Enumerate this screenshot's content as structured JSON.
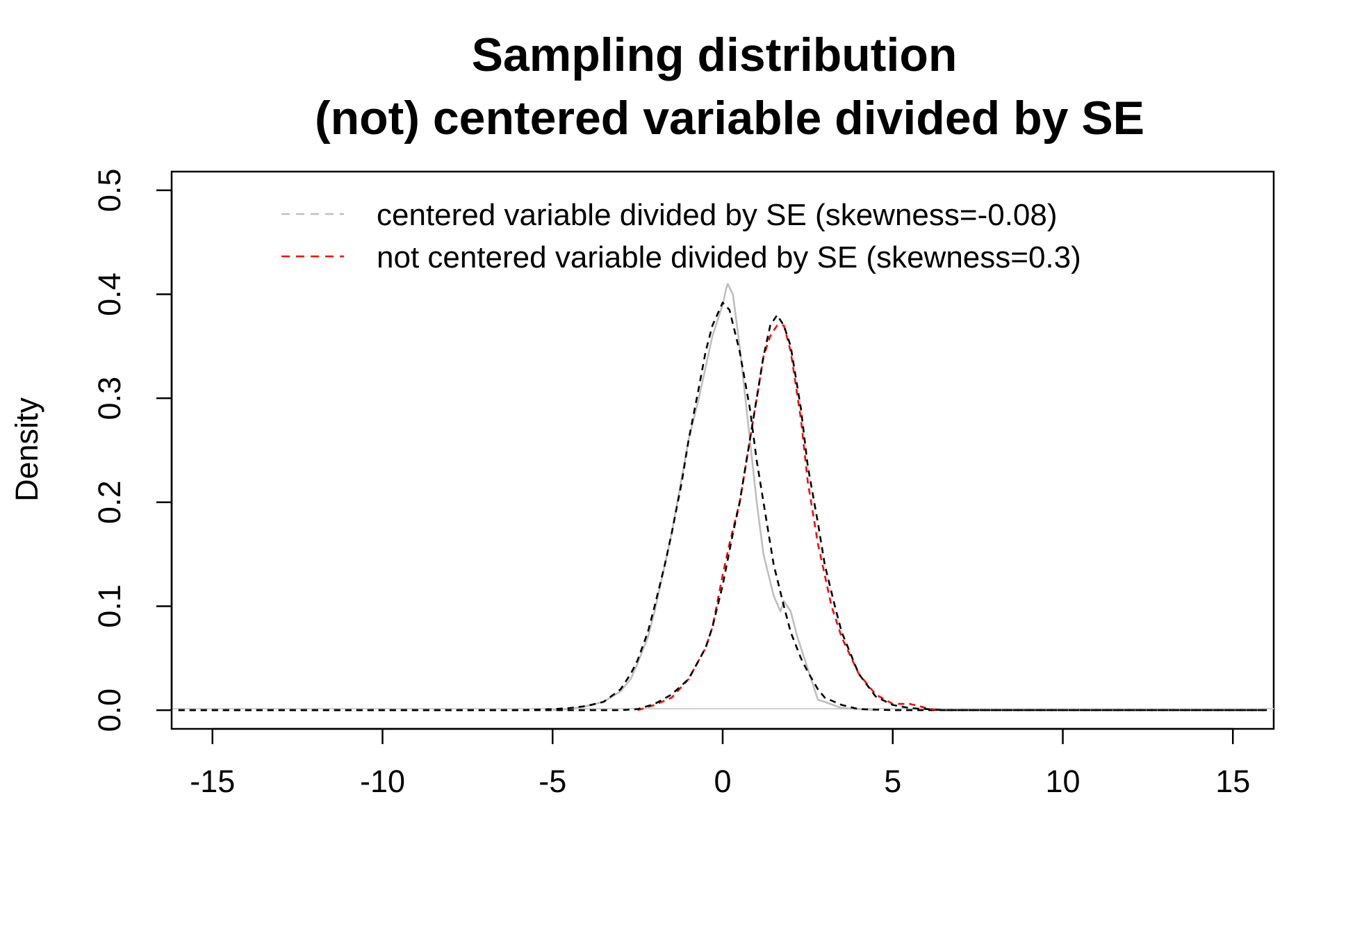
{
  "chart_data": {
    "type": "line",
    "title": "Sampling distribution",
    "subtitle": "(not) centered variable divided by SE",
    "xlabel": "",
    "ylabel": "Density",
    "xlim": [
      -16.2,
      16.2
    ],
    "ylim": [
      -0.018,
      0.518
    ],
    "x_ticks": [
      -15,
      -10,
      -5,
      0,
      5,
      10,
      15
    ],
    "y_ticks": [
      0.0,
      0.1,
      0.2,
      0.3,
      0.4,
      0.5
    ],
    "x_tick_labels": [
      "-15",
      "-10",
      "-5",
      "0",
      "5",
      "10",
      "15"
    ],
    "y_tick_labels": [
      "0.0",
      "0.1",
      "0.2",
      "0.3",
      "0.4",
      "0.5"
    ],
    "grid": false,
    "legend_position": "top-center",
    "legend": [
      {
        "label": "centered variable divided by SE (skewness=-0.08)",
        "color": "#bebebe",
        "style": "dashed"
      },
      {
        "label": "not centered variable divided by SE (skewness=0.3)",
        "color": "#ff0000",
        "style": "dashed"
      }
    ],
    "series": [
      {
        "key": "centered_density",
        "color": "#bebebe",
        "style": "solid",
        "x": [
          -5,
          -4.5,
          -4,
          -3.5,
          -3,
          -2.7,
          -2.5,
          -2.2,
          -2,
          -1.5,
          -1,
          -0.7,
          -0.5,
          -0.3,
          0,
          0.1,
          0.15,
          0.3,
          0.5,
          0.7,
          1,
          1.2,
          1.5,
          1.7,
          1.8,
          2,
          2.2,
          2.5,
          2.8,
          3,
          3.5,
          4,
          4.5
        ],
        "y": [
          0,
          0.001,
          0.004,
          0.008,
          0.018,
          0.03,
          0.045,
          0.07,
          0.095,
          0.17,
          0.26,
          0.3,
          0.33,
          0.36,
          0.39,
          0.405,
          0.41,
          0.4,
          0.35,
          0.29,
          0.2,
          0.15,
          0.11,
          0.095,
          0.105,
          0.095,
          0.07,
          0.04,
          0.01,
          0.008,
          0.002,
          0.001,
          0
        ]
      },
      {
        "key": "centered_normal",
        "color": "#000000",
        "style": "dashed",
        "x": [
          -16,
          -6,
          -5,
          -4.5,
          -4,
          -3.5,
          -3,
          -2.7,
          -2.5,
          -2.2,
          -2,
          -1.7,
          -1.5,
          -1.2,
          -1,
          -0.7,
          -0.5,
          -0.3,
          0,
          0.2,
          0.5,
          0.8,
          1,
          1.3,
          1.5,
          1.8,
          2,
          2.3,
          2.5,
          2.8,
          3,
          3.5,
          4,
          5,
          16
        ],
        "y": [
          0,
          0,
          0.001,
          0.002,
          0.004,
          0.008,
          0.02,
          0.035,
          0.048,
          0.075,
          0.1,
          0.14,
          0.17,
          0.22,
          0.26,
          0.31,
          0.345,
          0.37,
          0.392,
          0.385,
          0.345,
          0.29,
          0.24,
          0.18,
          0.14,
          0.1,
          0.075,
          0.05,
          0.037,
          0.02,
          0.012,
          0.005,
          0.001,
          0,
          0
        ]
      },
      {
        "key": "not_centered_density",
        "color": "#ff0000",
        "style": "dashed",
        "x": [
          -2.5,
          -2,
          -1.5,
          -1,
          -0.5,
          -0.3,
          0,
          0.2,
          0.5,
          0.8,
          1,
          1.2,
          1.4,
          1.6,
          1.8,
          2,
          2.3,
          2.5,
          2.8,
          3,
          3.2,
          3.5,
          4,
          4.5,
          5,
          5.5,
          6,
          6.3
        ],
        "y": [
          0,
          0.005,
          0.012,
          0.03,
          0.06,
          0.08,
          0.13,
          0.16,
          0.2,
          0.26,
          0.3,
          0.34,
          0.36,
          0.37,
          0.37,
          0.345,
          0.28,
          0.22,
          0.16,
          0.13,
          0.1,
          0.07,
          0.035,
          0.015,
          0.006,
          0.006,
          0.002,
          0
        ]
      },
      {
        "key": "not_centered_normal",
        "color": "#000000",
        "style": "dashed",
        "x": [
          -16,
          -3,
          -2.5,
          -2,
          -1.5,
          -1,
          -0.5,
          -0.3,
          0,
          0.3,
          0.5,
          0.8,
          1,
          1.2,
          1.4,
          1.6,
          1.8,
          2,
          2.3,
          2.5,
          2.8,
          3,
          3.3,
          3.5,
          4,
          4.5,
          5,
          5.5,
          6,
          6.5,
          16
        ],
        "y": [
          0,
          0,
          0.001,
          0.006,
          0.015,
          0.03,
          0.06,
          0.08,
          0.12,
          0.17,
          0.2,
          0.26,
          0.3,
          0.34,
          0.37,
          0.38,
          0.37,
          0.35,
          0.29,
          0.235,
          0.18,
          0.14,
          0.1,
          0.075,
          0.035,
          0.013,
          0.005,
          0.002,
          0.001,
          0,
          0
        ]
      }
    ]
  }
}
